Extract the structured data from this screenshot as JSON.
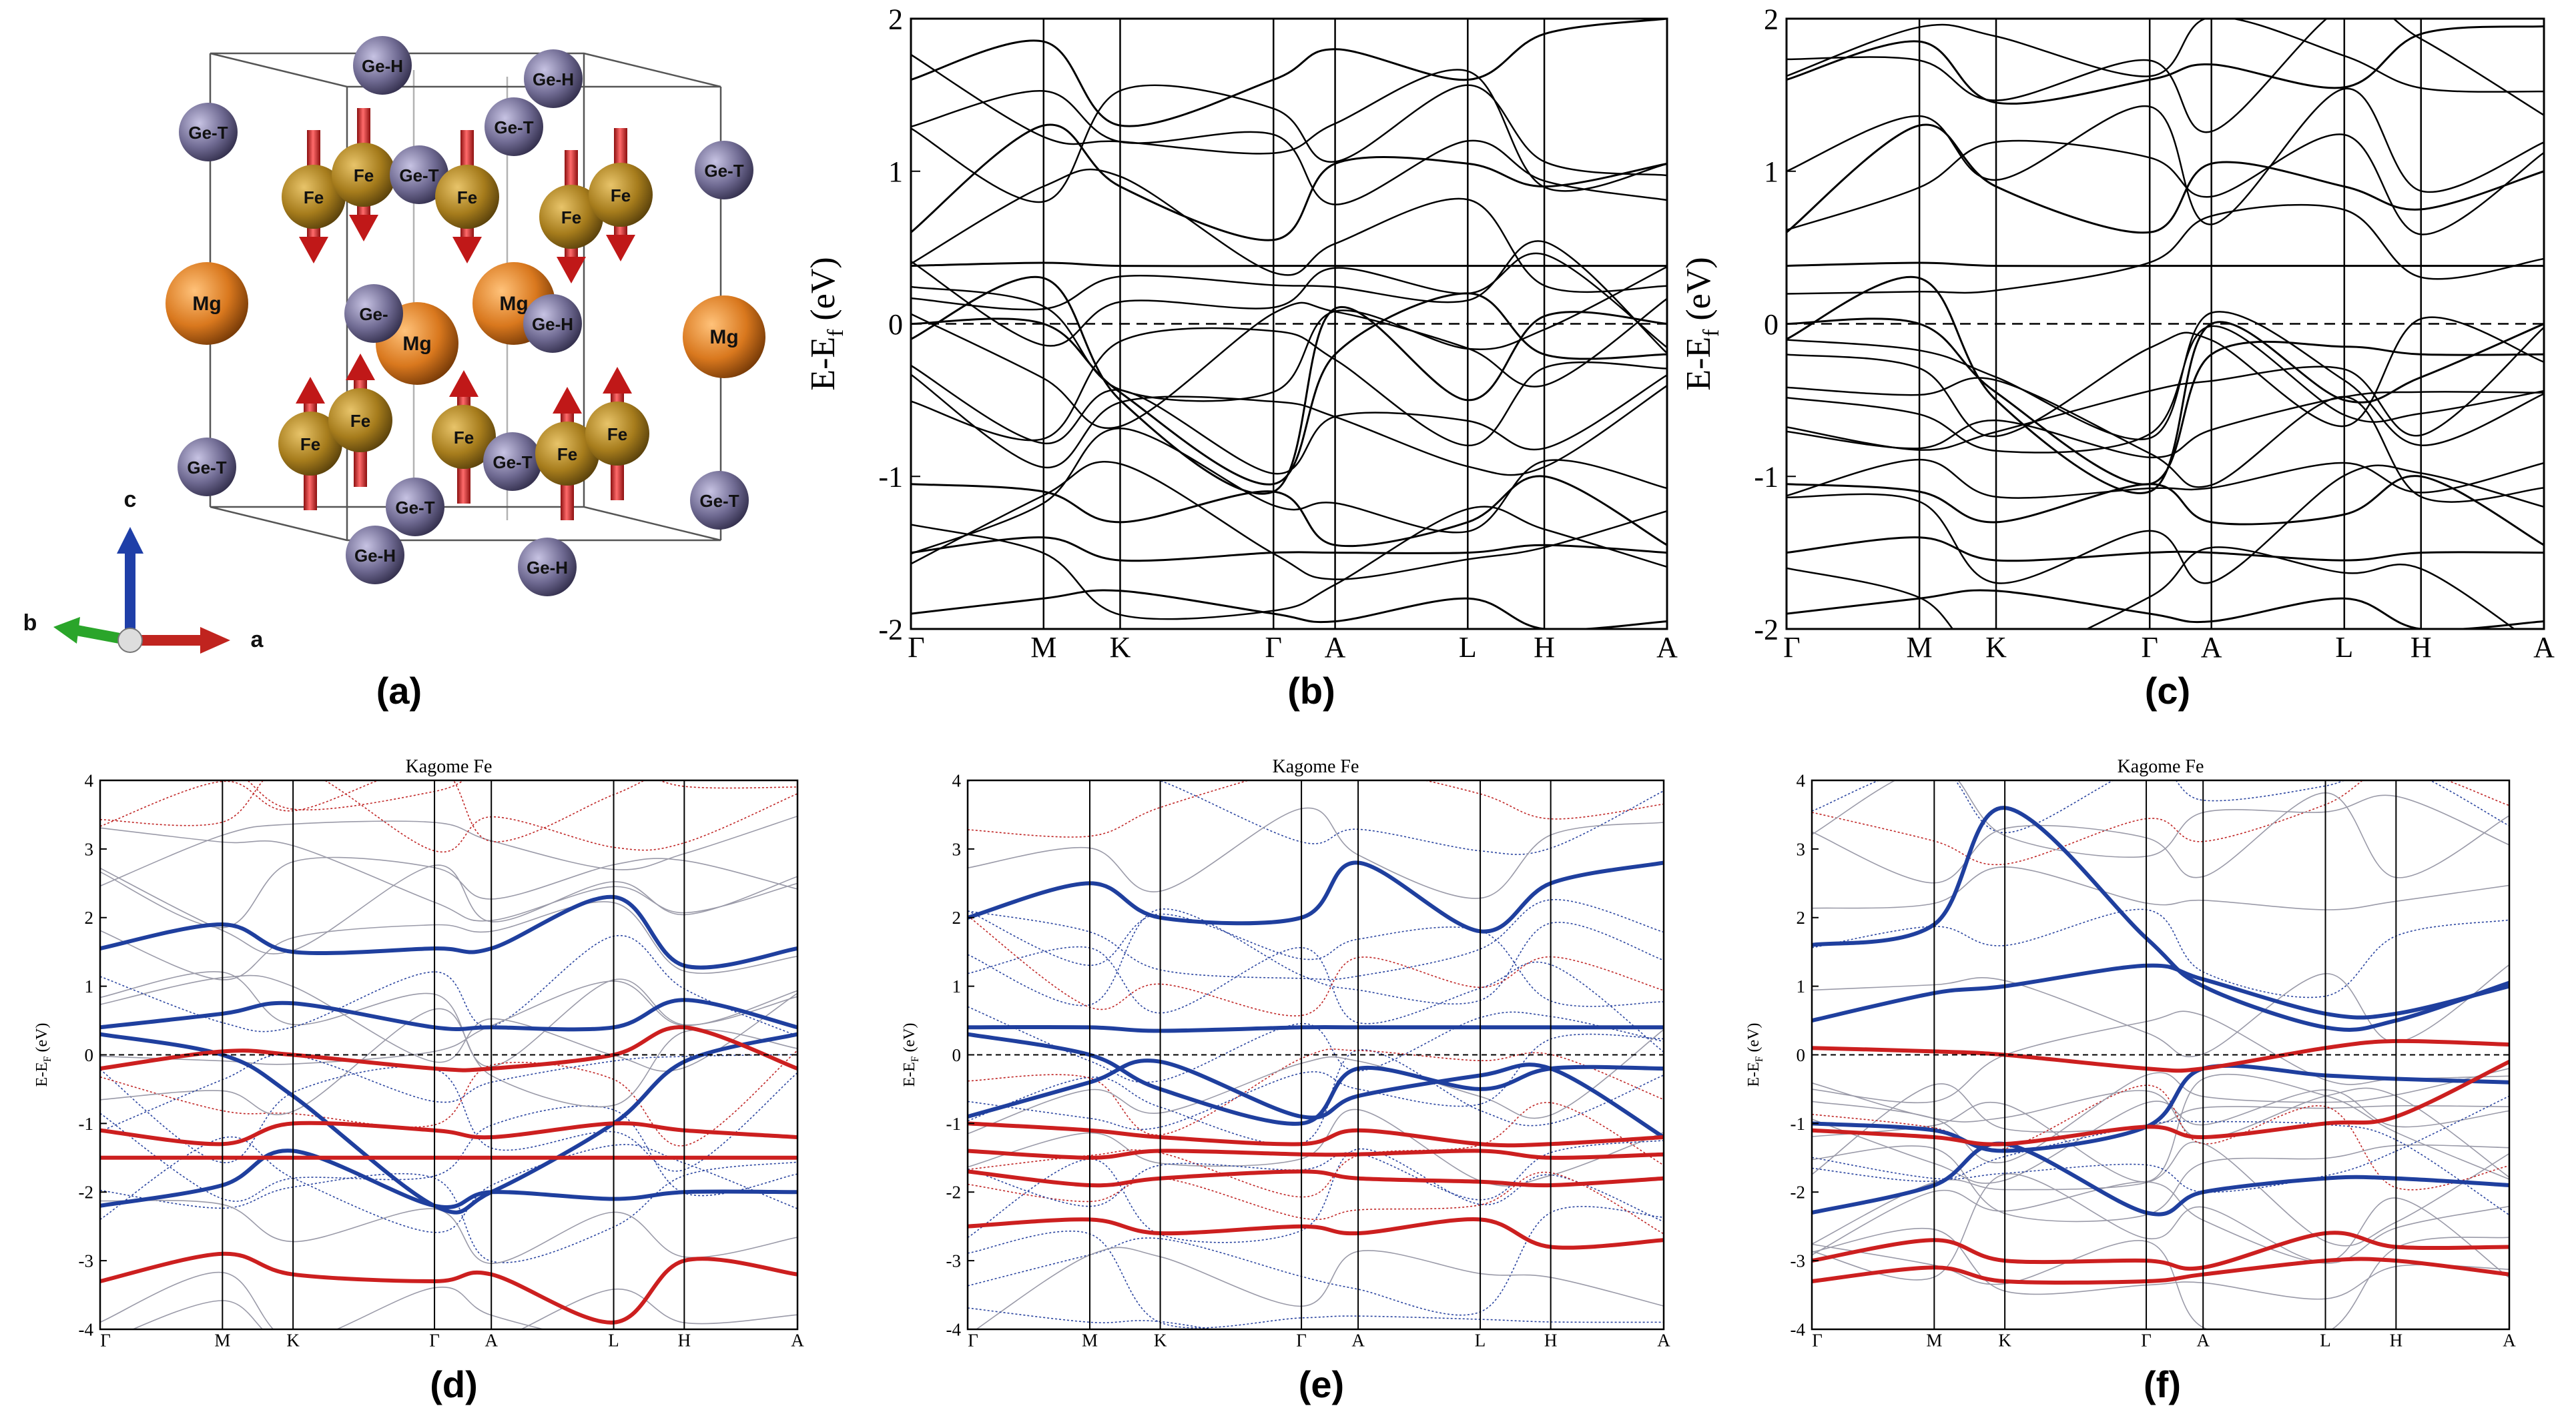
{
  "figure": {
    "panel_labels": [
      "(a)",
      "(b)",
      "(c)",
      "(d)",
      "(e)",
      "(f)"
    ],
    "crystal": {
      "atoms": [
        "Ge-H",
        "Ge-H",
        "Ge-T",
        "Ge-T",
        "Fe",
        "Fe",
        "Ge-T",
        "Fe",
        "Ge-T",
        "Fe",
        "Fe",
        "Mg",
        "Ge-",
        "Mg",
        "Mg",
        "Ge-H",
        "Mg",
        "Fe",
        "Fe",
        "Fe",
        "Ge-T",
        "Fe",
        "Fe",
        "Ge-T",
        "Ge-T",
        "Ge-T",
        "Ge-H",
        "Ge-H"
      ],
      "axes": {
        "a": "a",
        "b": "b",
        "c": "c"
      },
      "colors": {
        "Fe": "#a67c1c",
        "Mg": "#d9781e",
        "Ge": "#6f6a92",
        "arrow": "#d42222"
      }
    },
    "kpath_top": [
      "Γ",
      "M",
      "K",
      "Γ",
      "A",
      "L",
      "H",
      "A"
    ],
    "kpath_bottom": [
      "Γ",
      "M",
      "K",
      "Γ",
      "A",
      "L",
      "H",
      "A"
    ],
    "ylabel_top": "E-E",
    "ylabel_top_sub": "f",
    "ylabel_top_unit": " (eV)",
    "ylabel_bottom": "E-E",
    "ylabel_bottom_sub": "F",
    "ylabel_bottom_unit": " (eV)",
    "kagome_title": "Kagome Fe"
  },
  "chart_data": [
    {
      "id": "b",
      "type": "line",
      "title": "",
      "xlabel": "",
      "ylabel": "E-Ef (eV)",
      "categories": [
        "Γ",
        "M",
        "K",
        "Γ",
        "A",
        "L",
        "H",
        "A"
      ],
      "k_positions": [
        0,
        0.577,
        0.91,
        1.577,
        1.845,
        2.422,
        2.755,
        3.289
      ],
      "ylim": [
        -2,
        2
      ],
      "yticks": [
        -2,
        -1,
        0,
        1,
        2
      ],
      "fermi_level": 0,
      "series": [
        {
          "name": "band-upper-1",
          "color": "#000000",
          "values": [
            0.38,
            0.4,
            0.38,
            0.38,
            0.38,
            0.38,
            0.38,
            0.38
          ]
        },
        {
          "name": "band-upper-2",
          "color": "#000000",
          "values": [
            0.6,
            1.3,
            0.9,
            0.55,
            1.05,
            1.05,
            0.9,
            1.05
          ]
        },
        {
          "name": "band-upper-3",
          "color": "#000000",
          "values": [
            1.6,
            1.85,
            1.3,
            1.6,
            1.8,
            1.6,
            1.9,
            2.0
          ]
        },
        {
          "name": "band-fermi-1",
          "color": "#000000",
          "values": [
            0.0,
            0.0,
            -0.45,
            -1.05,
            -0.2,
            0.2,
            -0.2,
            -0.2
          ]
        },
        {
          "name": "band-fermi-2",
          "color": "#000000",
          "values": [
            -0.1,
            0.3,
            -0.5,
            -1.1,
            0.1,
            -0.5,
            0.05,
            0.0
          ]
        },
        {
          "name": "band-lower-1",
          "color": "#000000",
          "values": [
            -1.05,
            -1.1,
            -1.3,
            -1.1,
            -1.45,
            -1.3,
            -1.0,
            -1.45
          ]
        },
        {
          "name": "band-lower-2",
          "color": "#000000",
          "values": [
            -1.5,
            -1.4,
            -1.55,
            -1.5,
            -1.5,
            -1.5,
            -1.45,
            -1.5
          ]
        },
        {
          "name": "band-lower-3",
          "color": "#000000",
          "values": [
            -1.9,
            -1.8,
            -1.75,
            -1.9,
            -1.95,
            -1.8,
            -2.0,
            -1.95
          ]
        }
      ]
    },
    {
      "id": "c",
      "type": "line",
      "title": "",
      "xlabel": "",
      "ylabel": "E-Ef (eV)",
      "categories": [
        "Γ",
        "M",
        "K",
        "Γ",
        "A",
        "L",
        "H",
        "A"
      ],
      "k_positions": [
        0,
        0.577,
        0.91,
        1.577,
        1.845,
        2.422,
        2.755,
        3.289
      ],
      "ylim": [
        -2,
        2
      ],
      "yticks": [
        -2,
        -1,
        0,
        1,
        2
      ],
      "fermi_level": 0,
      "series": [
        {
          "name": "band-upper-1",
          "color": "#000000",
          "values": [
            0.38,
            0.4,
            0.38,
            0.38,
            0.38,
            0.38,
            0.38,
            0.38
          ]
        },
        {
          "name": "band-upper-2",
          "color": "#000000",
          "values": [
            0.6,
            1.3,
            0.9,
            0.6,
            1.05,
            0.9,
            0.75,
            1.0
          ]
        },
        {
          "name": "band-upper-3",
          "color": "#000000",
          "values": [
            1.6,
            1.85,
            1.45,
            1.6,
            1.7,
            1.55,
            1.9,
            1.95
          ]
        },
        {
          "name": "band-fermi-1",
          "color": "#000000",
          "values": [
            0.0,
            0.0,
            -0.45,
            -1.05,
            -0.2,
            -0.15,
            -0.2,
            -0.2
          ]
        },
        {
          "name": "band-fermi-2",
          "color": "#000000",
          "values": [
            -0.1,
            0.3,
            -0.5,
            -1.1,
            0.0,
            -0.5,
            -0.35,
            0.0
          ]
        },
        {
          "name": "band-lower-1",
          "color": "#000000",
          "values": [
            -1.05,
            -1.1,
            -1.3,
            -1.05,
            -1.3,
            -1.25,
            -1.0,
            -1.45
          ]
        },
        {
          "name": "band-lower-2",
          "color": "#000000",
          "values": [
            -1.5,
            -1.4,
            -1.55,
            -1.5,
            -1.5,
            -1.55,
            -1.5,
            -1.5
          ]
        },
        {
          "name": "band-lower-3",
          "color": "#000000",
          "values": [
            -1.9,
            -1.8,
            -1.75,
            -1.9,
            -1.95,
            -1.8,
            -2.0,
            -1.95
          ]
        }
      ]
    },
    {
      "id": "d",
      "type": "line",
      "title": "Kagome Fe",
      "xlabel": "",
      "ylabel": "E-EF (eV)",
      "categories": [
        "Γ",
        "M",
        "K",
        "Γ",
        "A",
        "L",
        "H",
        "A"
      ],
      "k_positions": [
        0,
        0.577,
        0.91,
        1.577,
        1.845,
        2.422,
        2.755,
        3.289
      ],
      "ylim": [
        -4,
        4
      ],
      "yticks": [
        -4,
        -3,
        -2,
        -1,
        0,
        1,
        2,
        3,
        4
      ],
      "fermi_level": 0,
      "series": [
        {
          "name": "blue-1",
          "color": "#1f3f9e",
          "weight": "thick",
          "values": [
            1.55,
            1.9,
            1.5,
            1.55,
            1.55,
            2.3,
            1.3,
            1.55
          ]
        },
        {
          "name": "blue-2",
          "color": "#1f3f9e",
          "weight": "thick",
          "values": [
            0.4,
            0.6,
            0.75,
            0.4,
            0.4,
            0.4,
            0.8,
            0.4
          ]
        },
        {
          "name": "blue-3",
          "color": "#1f3f9e",
          "weight": "thick",
          "values": [
            0.3,
            0.0,
            -0.6,
            -2.2,
            -2.0,
            -1.0,
            -0.1,
            0.3
          ]
        },
        {
          "name": "blue-4",
          "color": "#1f3f9e",
          "weight": "thick",
          "values": [
            -2.2,
            -1.9,
            -1.4,
            -2.2,
            -2.0,
            -2.1,
            -2.0,
            -2.0
          ]
        },
        {
          "name": "red-1",
          "color": "#cc1f1f",
          "weight": "thick",
          "values": [
            -0.2,
            0.05,
            0.0,
            -0.2,
            -0.2,
            0.0,
            0.4,
            -0.2
          ]
        },
        {
          "name": "red-2",
          "color": "#cc1f1f",
          "weight": "thick",
          "values": [
            -1.5,
            -1.5,
            -1.5,
            -1.5,
            -1.5,
            -1.5,
            -1.5,
            -1.5
          ]
        },
        {
          "name": "red-3",
          "color": "#cc1f1f",
          "weight": "thick",
          "values": [
            -1.1,
            -1.3,
            -1.0,
            -1.1,
            -1.2,
            -1.0,
            -1.1,
            -1.2
          ]
        },
        {
          "name": "red-4",
          "color": "#cc1f1f",
          "weight": "thick",
          "values": [
            -3.3,
            -2.9,
            -3.2,
            -3.3,
            -3.2,
            -3.9,
            -3.0,
            -3.2
          ]
        }
      ]
    },
    {
      "id": "e",
      "type": "line",
      "title": "Kagome Fe",
      "xlabel": "",
      "ylabel": "E-EF (eV)",
      "categories": [
        "Γ",
        "M",
        "K",
        "Γ",
        "A",
        "L",
        "H",
        "A"
      ],
      "k_positions": [
        0,
        0.577,
        0.91,
        1.577,
        1.845,
        2.422,
        2.755,
        3.289
      ],
      "ylim": [
        -4,
        4
      ],
      "yticks": [
        -4,
        -3,
        -2,
        -1,
        0,
        1,
        2,
        3,
        4
      ],
      "fermi_level": 0,
      "series": [
        {
          "name": "blue-1",
          "color": "#1f3f9e",
          "weight": "thick",
          "values": [
            2.0,
            2.5,
            2.0,
            2.0,
            2.8,
            1.8,
            2.5,
            2.8
          ]
        },
        {
          "name": "blue-2",
          "color": "#1f3f9e",
          "weight": "thick",
          "values": [
            0.4,
            0.4,
            0.35,
            0.4,
            0.4,
            0.4,
            0.4,
            0.4
          ]
        },
        {
          "name": "blue-3",
          "color": "#1f3f9e",
          "weight": "thick",
          "values": [
            0.3,
            0.0,
            -0.5,
            -1.0,
            -0.2,
            -0.5,
            -0.2,
            -0.2
          ]
        },
        {
          "name": "blue-4",
          "color": "#1f3f9e",
          "weight": "thick",
          "values": [
            -0.9,
            -0.4,
            -0.1,
            -0.9,
            -0.6,
            -0.3,
            -0.2,
            -1.2
          ]
        },
        {
          "name": "red-1",
          "color": "#cc1f1f",
          "weight": "thick",
          "values": [
            -1.4,
            -1.5,
            -1.4,
            -1.45,
            -1.45,
            -1.4,
            -1.5,
            -1.45
          ]
        },
        {
          "name": "red-2",
          "color": "#cc1f1f",
          "weight": "thick",
          "values": [
            -1.7,
            -1.9,
            -1.8,
            -1.7,
            -1.8,
            -1.85,
            -1.9,
            -1.8
          ]
        },
        {
          "name": "red-3",
          "color": "#cc1f1f",
          "weight": "thick",
          "values": [
            -2.5,
            -2.4,
            -2.6,
            -2.5,
            -2.6,
            -2.4,
            -2.8,
            -2.7
          ]
        },
        {
          "name": "red-4",
          "color": "#cc1f1f",
          "weight": "thick",
          "values": [
            -1.0,
            -1.1,
            -1.2,
            -1.3,
            -1.1,
            -1.3,
            -1.3,
            -1.2
          ]
        }
      ]
    },
    {
      "id": "f",
      "type": "line",
      "title": "Kagome Fe",
      "xlabel": "",
      "ylabel": "E-EF (eV)",
      "categories": [
        "Γ",
        "M",
        "K",
        "Γ",
        "A",
        "L",
        "H",
        "A"
      ],
      "k_positions": [
        0,
        0.577,
        0.91,
        1.577,
        1.845,
        2.422,
        2.755,
        3.289
      ],
      "ylim": [
        -4,
        4
      ],
      "yticks": [
        -4,
        -3,
        -2,
        -1,
        0,
        1,
        2,
        3,
        4
      ],
      "fermi_level": 0,
      "series": [
        {
          "name": "blue-1",
          "color": "#1f3f9e",
          "weight": "thick",
          "values": [
            1.6,
            1.9,
            3.6,
            1.7,
            1.0,
            0.4,
            0.5,
            1.05
          ]
        },
        {
          "name": "blue-2",
          "color": "#1f3f9e",
          "weight": "thick",
          "values": [
            0.5,
            0.9,
            1.0,
            1.3,
            1.1,
            0.6,
            0.6,
            1.0
          ]
        },
        {
          "name": "blue-3",
          "color": "#1f3f9e",
          "weight": "thick",
          "values": [
            -1.0,
            -1.1,
            -1.4,
            -1.05,
            -0.2,
            -0.3,
            -0.35,
            -0.4
          ]
        },
        {
          "name": "blue-4",
          "color": "#1f3f9e",
          "weight": "thick",
          "values": [
            -2.3,
            -1.9,
            -1.3,
            -2.3,
            -2.0,
            -1.8,
            -1.8,
            -1.9
          ]
        },
        {
          "name": "red-1",
          "color": "#cc1f1f",
          "weight": "thick",
          "values": [
            0.1,
            0.05,
            0.0,
            -0.2,
            -0.2,
            0.1,
            0.2,
            0.15
          ]
        },
        {
          "name": "red-2",
          "color": "#cc1f1f",
          "weight": "thick",
          "values": [
            -1.1,
            -1.2,
            -1.3,
            -1.05,
            -1.2,
            -1.0,
            -0.9,
            -0.1
          ]
        },
        {
          "name": "red-3",
          "color": "#cc1f1f",
          "weight": "thick",
          "values": [
            -3.0,
            -2.7,
            -3.0,
            -3.0,
            -3.1,
            -2.6,
            -2.8,
            -2.8
          ]
        },
        {
          "name": "red-4",
          "color": "#cc1f1f",
          "weight": "thick",
          "values": [
            -3.3,
            -3.1,
            -3.3,
            -3.3,
            -3.2,
            -3.0,
            -3.0,
            -3.2
          ]
        }
      ]
    }
  ]
}
